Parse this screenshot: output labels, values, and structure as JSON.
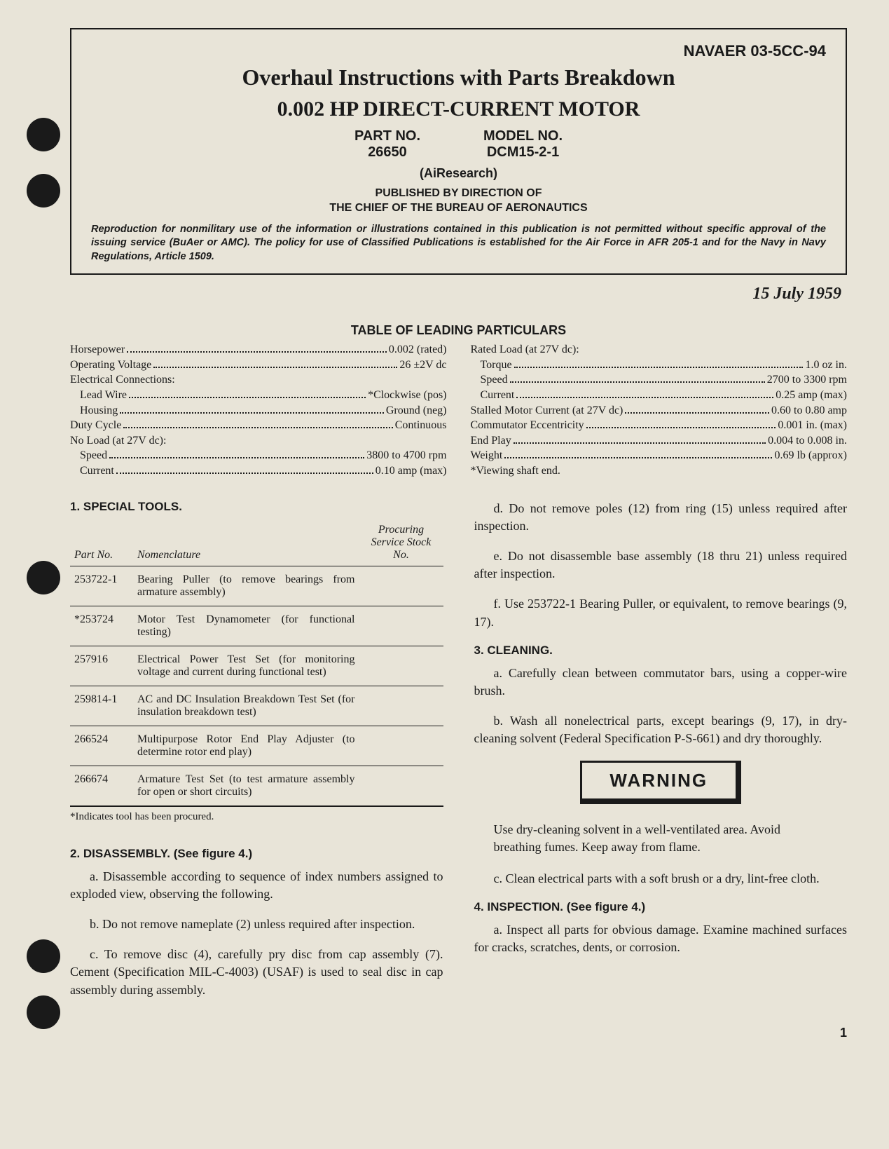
{
  "doc_code": "NAVAER 03-5CC-94",
  "title_line1": "Overhaul Instructions with Parts Breakdown",
  "title_line2": "0.002 HP DIRECT-CURRENT MOTOR",
  "part_no_label": "PART NO.",
  "part_no_value": "26650",
  "model_no_label": "MODEL NO.",
  "model_no_value": "DCM15-2-1",
  "airesearch": "(AiResearch)",
  "published_by_1": "PUBLISHED BY DIRECTION OF",
  "published_by_2": "THE CHIEF OF THE BUREAU OF AERONAUTICS",
  "repro_note": "Reproduction for nonmilitary use of the information or illustrations contained in this publication is not permitted without specific approval of the issuing service (BuAer or AMC). The policy for use of Classified Publications is established for the Air Force in AFR 205-1 and for the Navy in Navy Regulations, Article 1509.",
  "date": "15 July 1959",
  "particulars_title": "TABLE OF LEADING PARTICULARS",
  "particulars_left": [
    {
      "label": "Horsepower",
      "value": "0.002 (rated)"
    },
    {
      "label": "Operating Voltage",
      "value": "26 ±2V dc"
    },
    {
      "label": "Electrical Connections:",
      "value": ""
    },
    {
      "label": "Lead Wire",
      "value": "*Clockwise (pos)",
      "indent": true
    },
    {
      "label": "Housing",
      "value": "Ground (neg)",
      "indent": true
    },
    {
      "label": "Duty Cycle",
      "value": "Continuous"
    },
    {
      "label": "No Load (at 27V dc):",
      "value": ""
    },
    {
      "label": "Speed",
      "value": "3800 to 4700 rpm",
      "indent": true
    },
    {
      "label": "Current",
      "value": "0.10 amp (max)",
      "indent": true
    }
  ],
  "particulars_right": [
    {
      "label": "Rated Load (at 27V dc):",
      "value": ""
    },
    {
      "label": "Torque",
      "value": "1.0 oz in.",
      "indent": true
    },
    {
      "label": "Speed",
      "value": "2700 to 3300 rpm",
      "indent": true
    },
    {
      "label": "Current",
      "value": "0.25 amp (max)",
      "indent": true
    },
    {
      "label": "Stalled Motor Current (at 27V dc)",
      "value": "0.60 to 0.80 amp"
    },
    {
      "label": "Commutator Eccentricity",
      "value": "0.001 in. (max)"
    },
    {
      "label": "End Play",
      "value": "0.004 to 0.008 in."
    },
    {
      "label": "Weight",
      "value": "0.69 lb (approx)"
    },
    {
      "label": "*Viewing shaft end.",
      "value": ""
    }
  ],
  "sec1_title": "1. SPECIAL TOOLS.",
  "tools_headers": [
    "Part No.",
    "Nomenclature",
    "Procuring Service Stock No."
  ],
  "tools_rows": [
    {
      "pn": "253722-1",
      "nom": "Bearing Puller (to remove bearings from armature assembly)",
      "stock": ""
    },
    {
      "pn": "*253724",
      "nom": "Motor Test Dynamometer (for functional testing)",
      "stock": ""
    },
    {
      "pn": "257916",
      "nom": "Electrical Power Test Set (for monitoring voltage and current during functional test)",
      "stock": ""
    },
    {
      "pn": "259814-1",
      "nom": "AC and DC Insulation Breakdown Test Set (for insulation breakdown test)",
      "stock": ""
    },
    {
      "pn": "266524",
      "nom": "Multipurpose Rotor End Play Adjuster (to determine rotor end play)",
      "stock": ""
    },
    {
      "pn": "266674",
      "nom": "Armature Test Set (to test armature assembly for open or short circuits)",
      "stock": ""
    }
  ],
  "tools_note": "*Indicates tool has been procured.",
  "sec2_title": "2. DISASSEMBLY. (See figure 4.)",
  "sec2_a": "a. Disassemble according to sequence of index numbers assigned to exploded view, observing the following.",
  "sec2_b": "b. Do not remove nameplate (2) unless required after inspection.",
  "sec2_c": "c. To remove disc (4), carefully pry disc from cap assembly (7). Cement (Specification MIL-C-4003) (USAF) is used to seal disc in cap assembly during assembly.",
  "sec2_d": "d. Do not remove poles (12) from ring (15) unless required after inspection.",
  "sec2_e": "e. Do not disassemble base assembly (18 thru 21) unless required after inspection.",
  "sec2_f": "f. Use 253722-1 Bearing Puller, or equivalent, to remove bearings (9, 17).",
  "sec3_title": "3. CLEANING.",
  "sec3_a": "a. Carefully clean between commutator bars, using a copper-wire brush.",
  "sec3_b": "b. Wash all nonelectrical parts, except bearings (9, 17), in dry-cleaning solvent (Federal Specification P-S-661) and dry thoroughly.",
  "warning_label": "WARNING",
  "warning_text": "Use dry-cleaning solvent in a well-ventilated area. Avoid breathing fumes. Keep away from flame.",
  "sec3_c": "c. Clean electrical parts with a soft brush or a dry, lint-free cloth.",
  "sec4_title": "4. INSPECTION. (See figure 4.)",
  "sec4_a": "a. Inspect all parts for obvious damage. Examine machined surfaces for cracks, scratches, dents, or corrosion.",
  "page_number": "1"
}
